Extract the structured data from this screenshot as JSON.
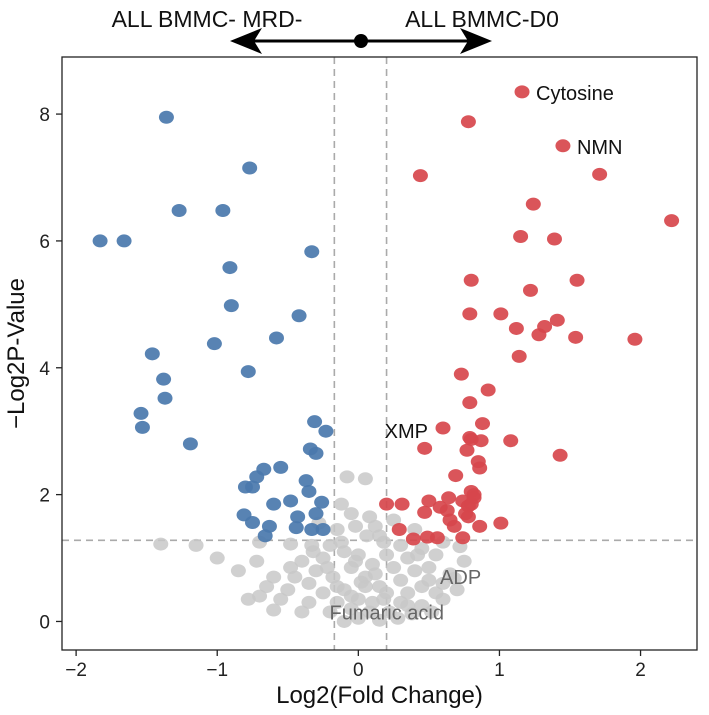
{
  "chart_data": {
    "type": "scatter",
    "title": "",
    "xlabel": "Log2(Fold Change)",
    "ylabel": "−Log2P-Value",
    "xlim": [
      -2.1,
      2.4
    ],
    "ylim": [
      -0.45,
      8.9
    ],
    "x_ticks": [
      -2,
      -1,
      0,
      1,
      2
    ],
    "x_tick_labels": [
      "−2",
      "−1",
      "0",
      "1",
      "2"
    ],
    "y_ticks": [
      0,
      2,
      4,
      6,
      8
    ],
    "y_tick_labels": [
      "0",
      "2",
      "4",
      "6",
      "8"
    ],
    "grid": false,
    "legend": "none",
    "thresholds": {
      "fold_change": [
        -0.17,
        0.2
      ],
      "p_value": 1.28
    },
    "direction_labels": {
      "left": "ALL BMMC- MRD-",
      "right": "ALL BMMC-D0"
    },
    "colors": {
      "down": "#4a78ac",
      "up": "#d7474c",
      "ns": "#c8c8c8",
      "ns_label": "#666666",
      "threshold_line": "#aaaaaa"
    },
    "series": [
      {
        "group": "down",
        "points": [
          [
            -1.36,
            7.95
          ],
          [
            -0.77,
            7.15
          ],
          [
            -1.27,
            6.48
          ],
          [
            -0.96,
            6.48
          ],
          [
            -1.83,
            6.0
          ],
          [
            -1.66,
            6.0
          ],
          [
            -0.33,
            5.83
          ],
          [
            -0.91,
            5.58
          ],
          [
            -0.9,
            4.98
          ],
          [
            -0.42,
            4.82
          ],
          [
            -0.58,
            4.47
          ],
          [
            -1.02,
            4.38
          ],
          [
            -1.46,
            4.22
          ],
          [
            -0.78,
            3.94
          ],
          [
            -1.38,
            3.82
          ],
          [
            -1.37,
            3.52
          ],
          [
            -1.54,
            3.28
          ],
          [
            -1.53,
            3.06
          ],
          [
            -0.31,
            3.15
          ],
          [
            -0.23,
            3.0
          ],
          [
            -1.19,
            2.8
          ],
          [
            -0.34,
            2.72
          ],
          [
            -0.3,
            2.65
          ],
          [
            -0.55,
            2.43
          ],
          [
            -0.67,
            2.4
          ],
          [
            -0.72,
            2.28
          ],
          [
            -0.37,
            2.22
          ],
          [
            -0.75,
            2.12
          ],
          [
            -0.8,
            2.12
          ],
          [
            -0.35,
            2.05
          ],
          [
            -0.48,
            1.9
          ],
          [
            -0.6,
            1.85
          ],
          [
            -0.26,
            1.88
          ],
          [
            -0.81,
            1.68
          ],
          [
            -0.43,
            1.65
          ],
          [
            -0.3,
            1.7
          ],
          [
            -0.75,
            1.56
          ],
          [
            -0.63,
            1.5
          ],
          [
            -0.44,
            1.48
          ],
          [
            -0.25,
            1.45
          ],
          [
            -0.33,
            1.45
          ],
          [
            -0.66,
            1.35
          ]
        ]
      },
      {
        "group": "up",
        "points": [
          [
            1.16,
            8.35
          ],
          [
            0.78,
            7.88
          ],
          [
            1.45,
            7.5
          ],
          [
            1.71,
            7.05
          ],
          [
            0.44,
            7.03
          ],
          [
            1.24,
            6.58
          ],
          [
            2.22,
            6.32
          ],
          [
            1.15,
            6.07
          ],
          [
            1.39,
            6.03
          ],
          [
            1.55,
            5.38
          ],
          [
            0.8,
            5.38
          ],
          [
            1.22,
            5.22
          ],
          [
            0.79,
            4.85
          ],
          [
            1.01,
            4.85
          ],
          [
            1.41,
            4.75
          ],
          [
            1.12,
            4.62
          ],
          [
            1.32,
            4.65
          ],
          [
            1.28,
            4.52
          ],
          [
            1.54,
            4.48
          ],
          [
            1.96,
            4.45
          ],
          [
            1.14,
            4.18
          ],
          [
            0.73,
            3.9
          ],
          [
            0.92,
            3.65
          ],
          [
            0.79,
            3.45
          ],
          [
            0.6,
            3.05
          ],
          [
            0.88,
            3.12
          ],
          [
            0.79,
            2.9
          ],
          [
            0.8,
            2.87
          ],
          [
            0.87,
            2.85
          ],
          [
            1.08,
            2.85
          ],
          [
            0.47,
            2.73
          ],
          [
            0.77,
            2.7
          ],
          [
            0.85,
            2.52
          ],
          [
            0.86,
            2.42
          ],
          [
            1.43,
            2.62
          ],
          [
            0.69,
            2.3
          ],
          [
            0.8,
            2.05
          ],
          [
            0.82,
            2.0
          ],
          [
            0.82,
            1.95
          ],
          [
            0.64,
            1.95
          ],
          [
            0.74,
            1.9
          ],
          [
            0.8,
            1.85
          ],
          [
            0.78,
            1.82
          ],
          [
            0.5,
            1.9
          ],
          [
            0.2,
            1.85
          ],
          [
            0.31,
            1.85
          ],
          [
            0.58,
            1.8
          ],
          [
            0.63,
            1.75
          ],
          [
            0.78,
            1.65
          ],
          [
            0.47,
            1.72
          ],
          [
            0.65,
            1.6
          ],
          [
            0.76,
            1.7
          ],
          [
            0.68,
            1.5
          ],
          [
            0.29,
            1.45
          ],
          [
            0.86,
            1.5
          ],
          [
            1.01,
            1.55
          ],
          [
            0.56,
            1.32
          ],
          [
            0.74,
            1.32
          ],
          [
            0.39,
            1.3
          ],
          [
            0.49,
            1.33
          ]
        ]
      },
      {
        "group": "ns",
        "points": [
          [
            -1.4,
            1.22
          ],
          [
            -1.15,
            1.2
          ],
          [
            -1.0,
            1.0
          ],
          [
            -0.7,
            1.25
          ],
          [
            -0.48,
            1.22
          ],
          [
            -0.33,
            1.2
          ],
          [
            -0.08,
            2.28
          ],
          [
            0.05,
            2.25
          ],
          [
            -0.12,
            1.85
          ],
          [
            -0.05,
            1.7
          ],
          [
            0.08,
            1.65
          ],
          [
            -0.02,
            1.5
          ],
          [
            0.12,
            1.5
          ],
          [
            -0.15,
            1.45
          ],
          [
            0.15,
            1.35
          ],
          [
            -0.2,
            1.2
          ],
          [
            0.3,
            1.2
          ],
          [
            0.45,
            1.15
          ],
          [
            0.6,
            1.25
          ],
          [
            0.72,
            1.18
          ],
          [
            0.55,
            1.05
          ],
          [
            0.35,
            1.0
          ],
          [
            -0.1,
            1.1
          ],
          [
            0.0,
            1.05
          ],
          [
            0.2,
            1.05
          ],
          [
            -0.25,
            1.0
          ],
          [
            -0.4,
            0.95
          ],
          [
            0.1,
            0.9
          ],
          [
            -0.05,
            0.85
          ],
          [
            0.25,
            0.85
          ],
          [
            -0.3,
            0.8
          ],
          [
            0.4,
            0.8
          ],
          [
            0.5,
            0.85
          ],
          [
            0.65,
            0.75
          ],
          [
            -0.18,
            0.7
          ],
          [
            0.05,
            0.7
          ],
          [
            0.3,
            0.65
          ],
          [
            -0.45,
            0.7
          ],
          [
            -0.6,
            0.7
          ],
          [
            -0.35,
            0.6
          ],
          [
            0.15,
            0.55
          ],
          [
            0.45,
            0.55
          ],
          [
            -0.1,
            0.5
          ],
          [
            0.2,
            0.45
          ],
          [
            0.35,
            0.45
          ],
          [
            0.55,
            0.45
          ],
          [
            -0.25,
            0.45
          ],
          [
            -0.5,
            0.5
          ],
          [
            0.0,
            0.35
          ],
          [
            0.1,
            0.3
          ],
          [
            -0.15,
            0.3
          ],
          [
            0.3,
            0.3
          ],
          [
            0.45,
            0.25
          ],
          [
            -0.35,
            0.3
          ],
          [
            -0.55,
            0.35
          ],
          [
            -0.7,
            0.4
          ],
          [
            0.6,
            0.35
          ],
          [
            0.7,
            0.5
          ],
          [
            -0.05,
            0.2
          ],
          [
            0.08,
            0.15
          ],
          [
            0.22,
            0.15
          ],
          [
            -0.2,
            0.15
          ],
          [
            0.38,
            0.12
          ],
          [
            -0.4,
            0.15
          ],
          [
            0.52,
            0.15
          ],
          [
            -0.6,
            0.18
          ],
          [
            0.0,
            0.05
          ],
          [
            0.15,
            0.02
          ],
          [
            -0.1,
            0.0
          ],
          [
            0.28,
            0.05
          ],
          [
            0.05,
            0.55
          ],
          [
            -0.02,
            0.95
          ],
          [
            0.18,
            1.25
          ],
          [
            0.4,
            1.45
          ],
          [
            -0.28,
            1.55
          ],
          [
            0.25,
            1.6
          ],
          [
            -0.15,
            0.55
          ],
          [
            0.12,
            0.75
          ],
          [
            -0.32,
            1.1
          ],
          [
            0.5,
            0.65
          ],
          [
            -0.48,
            0.85
          ],
          [
            0.6,
            0.6
          ],
          [
            -0.65,
            0.55
          ],
          [
            0.35,
            0.25
          ],
          [
            -0.05,
            0.4
          ],
          [
            0.02,
            0.62
          ],
          [
            0.18,
            0.35
          ],
          [
            -0.22,
            0.85
          ],
          [
            0.42,
            1.05
          ],
          [
            -0.12,
            1.25
          ],
          [
            0.06,
            1.35
          ],
          [
            -0.78,
            0.35
          ],
          [
            0.75,
            0.95
          ],
          [
            0.68,
            0.68
          ],
          [
            -0.72,
            0.95
          ],
          [
            -0.85,
            0.8
          ]
        ]
      }
    ],
    "annotations": [
      {
        "label": "Cytosine",
        "x": 1.16,
        "y": 8.35,
        "group": "up"
      },
      {
        "label": "NMN",
        "x": 1.45,
        "y": 7.5,
        "group": "up"
      },
      {
        "label": "XMP",
        "x": 0.6,
        "y": 3.05,
        "group": "up"
      },
      {
        "label": "ADP",
        "x": 0.65,
        "y": 0.75,
        "group": "ns"
      },
      {
        "label": "Fumaric acid",
        "x": 0.15,
        "y": 0.3,
        "group": "ns"
      }
    ]
  }
}
